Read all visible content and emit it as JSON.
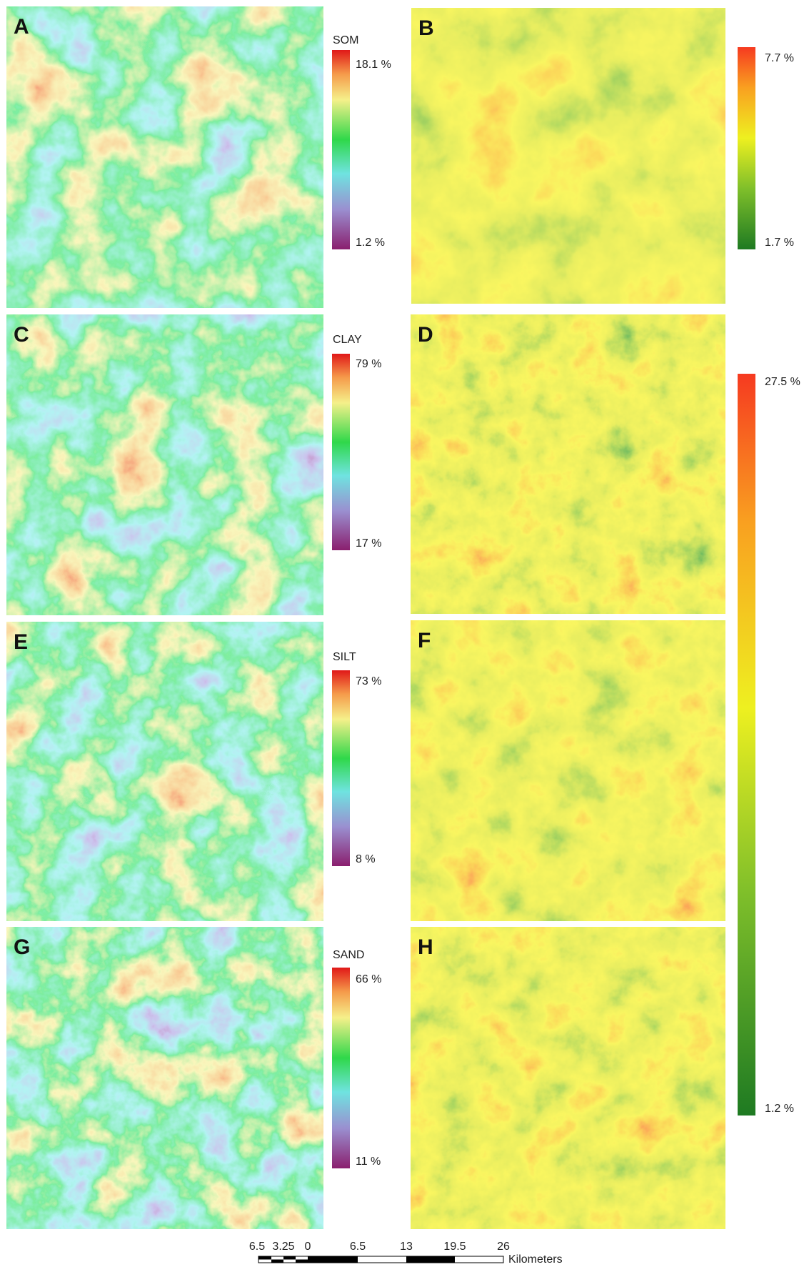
{
  "panels": [
    {
      "label": "A"
    },
    {
      "label": "B"
    },
    {
      "label": "C"
    },
    {
      "label": "D"
    },
    {
      "label": "E"
    },
    {
      "label": "F"
    },
    {
      "label": "G"
    },
    {
      "label": "H"
    }
  ],
  "legends": [
    {
      "title": "SOM",
      "max": "18.1 %",
      "min": "1.2 %"
    },
    {
      "max": "7.7 %",
      "min": "1.7 %"
    },
    {
      "title": "CLAY",
      "max": "79 %",
      "min": "17 %"
    },
    {
      "max": "27.5 %",
      "min": "1.2 %"
    },
    {
      "title": "SILT",
      "max": "73 %",
      "min": "8 %"
    },
    {
      "title": "SAND",
      "max": "66 %",
      "min": "11 %"
    }
  ],
  "scale_bar": {
    "labels": [
      "6.5",
      "3.25",
      "0",
      "6.5",
      "13",
      "19.5",
      "26"
    ],
    "unit": "Kilometers"
  }
}
